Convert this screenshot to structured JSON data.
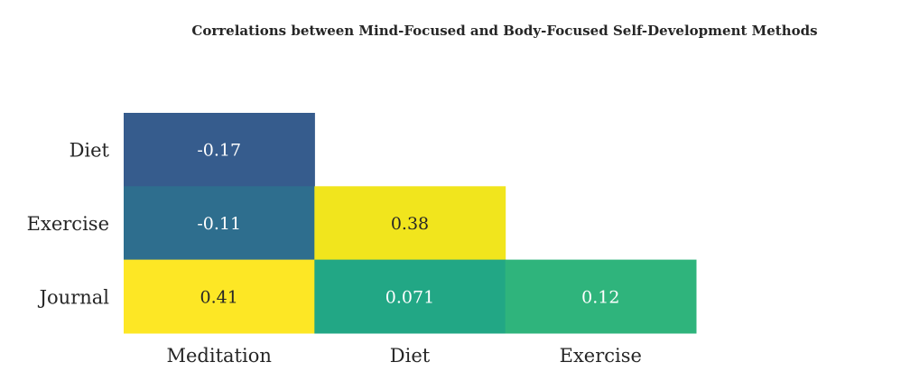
{
  "chart_data": {
    "type": "heatmap",
    "title": "Correlations between Mind-Focused and Body-Focused Self-Development Methods",
    "x_categories": [
      "Meditation",
      "Diet",
      "Exercise"
    ],
    "y_categories": [
      "Diet",
      "Exercise",
      "Journal"
    ],
    "cells": [
      {
        "row": 0,
        "col": 0,
        "value": -0.17,
        "label": "-0.17",
        "color": "#365c8d",
        "text_color": "#ffffff"
      },
      {
        "row": 1,
        "col": 0,
        "value": -0.11,
        "label": "-0.11",
        "color": "#2e6e8e",
        "text_color": "#ffffff"
      },
      {
        "row": 1,
        "col": 1,
        "value": 0.38,
        "label": "0.38",
        "color": "#f1e51d",
        "text_color": "#262626"
      },
      {
        "row": 2,
        "col": 0,
        "value": 0.41,
        "label": "0.41",
        "color": "#fde725",
        "text_color": "#262626"
      },
      {
        "row": 2,
        "col": 1,
        "value": 0.071,
        "label": "0.071",
        "color": "#22a785",
        "text_color": "#ffffff"
      },
      {
        "row": 2,
        "col": 2,
        "value": 0.12,
        "label": "0.12",
        "color": "#2fb47c",
        "text_color": "#ffffff"
      }
    ],
    "colormap": "viridis",
    "mask": "upper-triangle",
    "grid": false,
    "legend": "none"
  }
}
